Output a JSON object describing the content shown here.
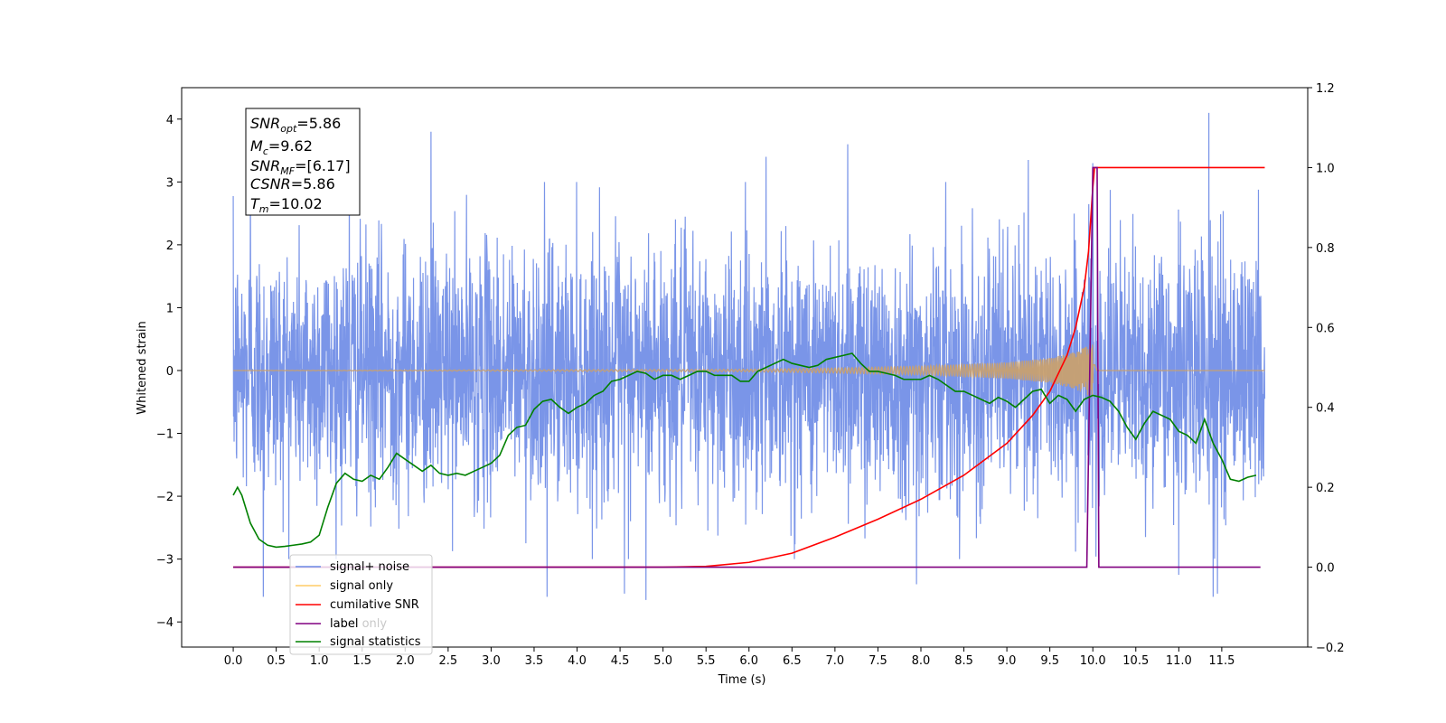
{
  "chart_data": {
    "type": "line",
    "xlabel": "Time (s)",
    "ylabel": "Whitened strain",
    "xlim": [
      -0.6,
      12.5
    ],
    "ylim": [
      -4.4,
      4.5
    ],
    "y2lim": [
      -0.2,
      1.2
    ],
    "x_ticks": [
      "0.0",
      "0.5",
      "1.0",
      "1.5",
      "2.0",
      "2.5",
      "3.0",
      "3.5",
      "4.0",
      "4.5",
      "5.0",
      "5.5",
      "6.0",
      "6.5",
      "7.0",
      "7.5",
      "8.0",
      "8.5",
      "9.0",
      "9.5",
      "10.0",
      "10.5",
      "11.0",
      "11.5"
    ],
    "y_ticks": [
      "−4",
      "−3",
      "−2",
      "−1",
      "0",
      "1",
      "2",
      "3",
      "4"
    ],
    "y2_ticks": [
      "−0.2",
      "0.0",
      "0.2",
      "0.4",
      "0.6",
      "0.8",
      "1.0",
      "1.2"
    ],
    "info_box": {
      "snr_opt": {
        "sym": "SNR",
        "sub": "opt",
        "val": "=5.86"
      },
      "mc": {
        "sym": "M",
        "sub": "c",
        "val": "=9.62"
      },
      "snr_mf": {
        "sym": "SNR",
        "sub": "MF",
        "val": "=[6.17]"
      },
      "csnr": {
        "sym": "CSNR",
        "val": "=5.86"
      },
      "tm": {
        "sym": "T",
        "sub": "m",
        "val": "=10.02"
      }
    },
    "legend": {
      "position": "lower-left",
      "entries": [
        {
          "label": "signal+ noise",
          "color": "#6b8ae5"
        },
        {
          "label": "signal only",
          "color": "#ffcc66"
        },
        {
          "label": "cumilative SNR",
          "color": "#ff0000"
        },
        {
          "label": "label",
          "color": "#800080"
        },
        {
          "label": "signal statistics",
          "color": "#008000"
        }
      ],
      "ghost_text": "label only"
    },
    "series": [
      {
        "name": "signal+ noise",
        "axis": "left",
        "color": "#6b8ae5",
        "x_range": [
          0.0,
          12.0
        ],
        "envelope_sigma": 1.0,
        "peaks": [
          {
            "x": 0.2,
            "y": 3.1
          },
          {
            "x": 0.35,
            "y": -3.6
          },
          {
            "x": 1.35,
            "y": 3.2
          },
          {
            "x": 2.3,
            "y": 3.8
          },
          {
            "x": 3.65,
            "y": -3.6
          },
          {
            "x": 4.55,
            "y": -3.55
          },
          {
            "x": 4.8,
            "y": -3.65
          },
          {
            "x": 6.2,
            "y": 3.4
          },
          {
            "x": 7.15,
            "y": 3.6
          },
          {
            "x": 7.95,
            "y": -3.4
          },
          {
            "x": 9.25,
            "y": 3.35
          },
          {
            "x": 10.0,
            "y": 3.3
          },
          {
            "x": 11.0,
            "y": -3.25
          },
          {
            "x": 11.35,
            "y": 4.1
          },
          {
            "x": 11.4,
            "y": -3.6
          },
          {
            "x": 11.45,
            "y": -3.55
          }
        ]
      },
      {
        "name": "signal only",
        "axis": "left",
        "color": "#ffcc66",
        "model": "chirp",
        "merger_time": 10.02,
        "amplitudes": [
          [
            0.0,
            0.0
          ],
          [
            6.0,
            0.02
          ],
          [
            7.0,
            0.04
          ],
          [
            8.0,
            0.07
          ],
          [
            9.0,
            0.13
          ],
          [
            9.5,
            0.2
          ],
          [
            9.8,
            0.3
          ],
          [
            10.02,
            0.45
          ],
          [
            10.05,
            0.0
          ],
          [
            12.0,
            0.0
          ]
        ]
      },
      {
        "name": "cumilative SNR",
        "axis": "right",
        "color": "#ff0000",
        "x": [
          0.0,
          5.0,
          5.5,
          6.0,
          6.5,
          7.0,
          7.5,
          8.0,
          8.5,
          9.0,
          9.3,
          9.5,
          9.7,
          9.8,
          9.9,
          9.95,
          10.0,
          10.02,
          10.05,
          12.0
        ],
        "values": [
          0.0,
          0.0,
          0.002,
          0.012,
          0.035,
          0.075,
          0.12,
          0.17,
          0.23,
          0.31,
          0.38,
          0.44,
          0.53,
          0.6,
          0.7,
          0.79,
          0.95,
          1.0,
          1.0,
          1.0
        ]
      },
      {
        "name": "label",
        "axis": "right",
        "color": "#800080",
        "x": [
          0.0,
          9.93,
          10.0,
          10.05,
          10.07,
          11.95
        ],
        "values": [
          0.0,
          0.0,
          1.0,
          1.0,
          0.0,
          0.0
        ]
      },
      {
        "name": "signal statistics",
        "axis": "right",
        "color": "#008000",
        "x": [
          0.0,
          0.05,
          0.1,
          0.2,
          0.3,
          0.4,
          0.5,
          0.6,
          0.7,
          0.8,
          0.9,
          1.0,
          1.1,
          1.2,
          1.3,
          1.4,
          1.5,
          1.6,
          1.7,
          1.8,
          1.9,
          2.0,
          2.1,
          2.2,
          2.3,
          2.4,
          2.5,
          2.6,
          2.7,
          2.8,
          2.9,
          3.0,
          3.1,
          3.2,
          3.3,
          3.4,
          3.5,
          3.6,
          3.7,
          3.8,
          3.9,
          4.0,
          4.1,
          4.2,
          4.3,
          4.4,
          4.5,
          4.6,
          4.7,
          4.8,
          4.9,
          5.0,
          5.1,
          5.2,
          5.3,
          5.4,
          5.5,
          5.6,
          5.7,
          5.8,
          5.9,
          6.0,
          6.1,
          6.2,
          6.3,
          6.4,
          6.5,
          6.6,
          6.7,
          6.8,
          6.9,
          7.0,
          7.1,
          7.2,
          7.3,
          7.4,
          7.5,
          7.6,
          7.7,
          7.8,
          7.9,
          8.0,
          8.1,
          8.2,
          8.3,
          8.4,
          8.5,
          8.6,
          8.7,
          8.8,
          8.9,
          9.0,
          9.1,
          9.2,
          9.3,
          9.4,
          9.5,
          9.6,
          9.7,
          9.8,
          9.9,
          10.0,
          10.1,
          10.2,
          10.3,
          10.4,
          10.5,
          10.6,
          10.7,
          10.8,
          10.9,
          11.0,
          11.1,
          11.2,
          11.3,
          11.4,
          11.5,
          11.6,
          11.7,
          11.8,
          11.9
        ],
        "values": [
          0.18,
          0.2,
          0.18,
          0.11,
          0.07,
          0.055,
          0.05,
          0.052,
          0.055,
          0.058,
          0.063,
          0.08,
          0.15,
          0.21,
          0.235,
          0.22,
          0.215,
          0.23,
          0.22,
          0.25,
          0.285,
          0.27,
          0.255,
          0.24,
          0.255,
          0.235,
          0.23,
          0.235,
          0.23,
          0.24,
          0.25,
          0.26,
          0.28,
          0.33,
          0.35,
          0.355,
          0.395,
          0.415,
          0.42,
          0.4,
          0.385,
          0.4,
          0.41,
          0.43,
          0.44,
          0.465,
          0.47,
          0.48,
          0.49,
          0.485,
          0.47,
          0.48,
          0.48,
          0.47,
          0.48,
          0.49,
          0.49,
          0.48,
          0.48,
          0.48,
          0.465,
          0.465,
          0.49,
          0.5,
          0.51,
          0.52,
          0.51,
          0.505,
          0.5,
          0.505,
          0.52,
          0.525,
          0.53,
          0.535,
          0.51,
          0.49,
          0.49,
          0.485,
          0.48,
          0.47,
          0.47,
          0.47,
          0.48,
          0.47,
          0.455,
          0.44,
          0.44,
          0.43,
          0.42,
          0.41,
          0.425,
          0.415,
          0.4,
          0.42,
          0.44,
          0.445,
          0.41,
          0.43,
          0.42,
          0.39,
          0.42,
          0.43,
          0.425,
          0.415,
          0.39,
          0.35,
          0.32,
          0.36,
          0.39,
          0.38,
          0.37,
          0.34,
          0.33,
          0.31,
          0.37,
          0.31,
          0.27,
          0.22,
          0.215,
          0.225,
          0.23
        ]
      }
    ]
  }
}
